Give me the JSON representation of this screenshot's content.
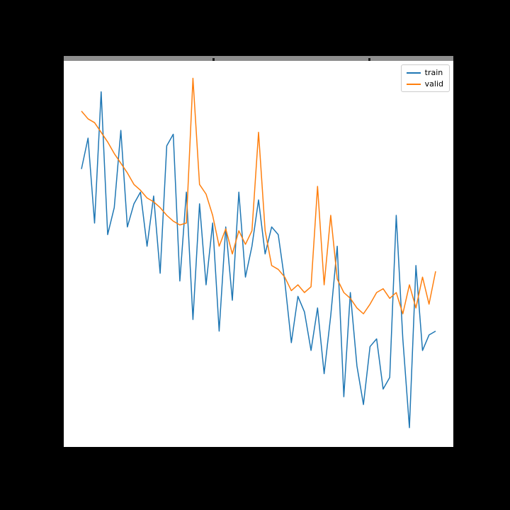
{
  "chart_data": {
    "type": "line",
    "x_mode": "index",
    "xlim": [
      0,
      54
    ],
    "ylim": [
      0,
      1
    ],
    "grid": false,
    "title": "",
    "xlabel": "",
    "ylabel": "",
    "legend": {
      "position": "upper right"
    },
    "series": [
      {
        "name": "train",
        "color": "#1f77b4",
        "values": [
          0.72,
          0.8,
          0.58,
          0.92,
          0.55,
          0.62,
          0.82,
          0.57,
          0.63,
          0.66,
          0.52,
          0.65,
          0.45,
          0.78,
          0.81,
          0.43,
          0.66,
          0.33,
          0.63,
          0.42,
          0.58,
          0.3,
          0.57,
          0.38,
          0.66,
          0.44,
          0.52,
          0.64,
          0.5,
          0.57,
          0.55,
          0.43,
          0.27,
          0.39,
          0.35,
          0.25,
          0.36,
          0.19,
          0.34,
          0.52,
          0.13,
          0.4,
          0.21,
          0.11,
          0.26,
          0.28,
          0.15,
          0.18,
          0.6,
          0.28,
          0.05,
          0.47,
          0.25,
          0.29,
          0.3
        ]
      },
      {
        "name": "valid",
        "color": "#ff7f0e",
        "values": [
          0.87,
          0.85,
          0.84,
          0.815,
          0.79,
          0.76,
          0.735,
          0.71,
          0.68,
          0.665,
          0.645,
          0.635,
          0.62,
          0.6,
          0.585,
          0.575,
          0.58,
          0.955,
          0.68,
          0.655,
          0.6,
          0.52,
          0.565,
          0.5,
          0.56,
          0.525,
          0.56,
          0.815,
          0.56,
          0.47,
          0.46,
          0.44,
          0.405,
          0.42,
          0.4,
          0.415,
          0.675,
          0.42,
          0.6,
          0.435,
          0.4,
          0.385,
          0.36,
          0.345,
          0.37,
          0.4,
          0.41,
          0.385,
          0.4,
          0.345,
          0.42,
          0.36,
          0.44,
          0.37,
          0.455
        ]
      }
    ]
  },
  "legend": {
    "entries": [
      {
        "label": "train"
      },
      {
        "label": "valid"
      }
    ]
  },
  "colors": {
    "page_background": "#000000",
    "plot_background": "#ffffff",
    "title_band": "#8f8f8f",
    "legend_border": "#cccccc",
    "train": "#1f77b4",
    "valid": "#ff7f0e"
  }
}
